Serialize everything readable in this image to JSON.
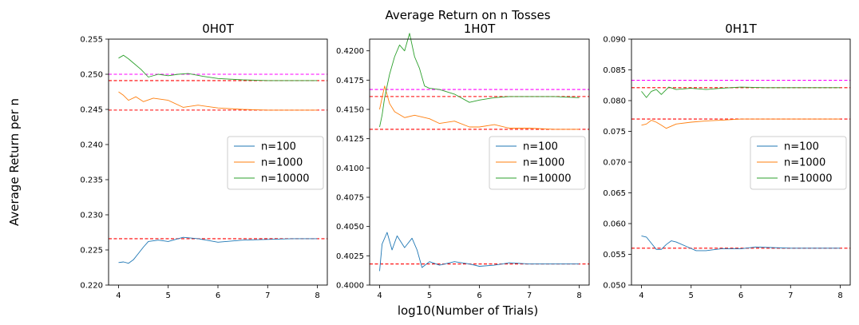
{
  "figure": {
    "suptitle": "Average Return on n Tosses",
    "ylabel": "Average Return per n",
    "xlabel": "log10(Number of Trials)"
  },
  "chart_data": [
    {
      "type": "line",
      "title": "0H0T",
      "xlim": [
        3.8,
        8.2
      ],
      "ylim": [
        0.22,
        0.255
      ],
      "xticks": [
        "4",
        "5",
        "6",
        "7",
        "8"
      ],
      "yticks": [
        "0.220",
        "0.225",
        "0.230",
        "0.235",
        "0.240",
        "0.245",
        "0.250",
        "0.255"
      ],
      "legend": "center-right",
      "series": [
        {
          "name": "n=100",
          "color": "#1f77b4",
          "x": [
            4.0,
            4.1,
            4.2,
            4.3,
            4.4,
            4.5,
            4.6,
            4.8,
            5.0,
            5.3,
            5.6,
            6.0,
            6.5,
            7.0,
            7.5,
            8.0
          ],
          "y": [
            0.2232,
            0.2233,
            0.2231,
            0.2236,
            0.2245,
            0.2254,
            0.2262,
            0.2264,
            0.2262,
            0.2268,
            0.2266,
            0.2261,
            0.2264,
            0.2265,
            0.2266,
            0.2266
          ]
        },
        {
          "name": "n=1000",
          "color": "#ff7f0e",
          "x": [
            4.0,
            4.1,
            4.2,
            4.35,
            4.5,
            4.7,
            5.0,
            5.3,
            5.6,
            6.0,
            6.5,
            7.0,
            7.5,
            8.0
          ],
          "y": [
            0.2475,
            0.247,
            0.2463,
            0.2468,
            0.2461,
            0.2466,
            0.2463,
            0.2453,
            0.2456,
            0.2452,
            0.245,
            0.2449,
            0.2449,
            0.2449
          ]
        },
        {
          "name": "n=10000",
          "color": "#2ca02c",
          "x": [
            4.0,
            4.1,
            4.2,
            4.3,
            4.45,
            4.6,
            4.8,
            5.0,
            5.2,
            5.4,
            5.7,
            6.0,
            6.5,
            7.0,
            7.5,
            8.0
          ],
          "y": [
            0.2523,
            0.2527,
            0.2522,
            0.2516,
            0.2507,
            0.2496,
            0.25,
            0.2498,
            0.25,
            0.2501,
            0.2497,
            0.2494,
            0.2492,
            0.2491,
            0.2491,
            0.2491
          ]
        }
      ],
      "reference_lines": [
        {
          "y": 0.25,
          "color": "#ff00ff"
        },
        {
          "y": 0.2491,
          "color": "#ff0000"
        },
        {
          "y": 0.2449,
          "color": "#ff0000"
        },
        {
          "y": 0.2266,
          "color": "#ff0000"
        }
      ]
    },
    {
      "type": "line",
      "title": "1H0T",
      "xlim": [
        3.8,
        8.2
      ],
      "ylim": [
        0.4,
        0.421
      ],
      "xticks": [
        "4",
        "5",
        "6",
        "7",
        "8"
      ],
      "yticks": [
        "0.4000",
        "0.4025",
        "0.4050",
        "0.4075",
        "0.4100",
        "0.4125",
        "0.4150",
        "0.4175",
        "0.4200"
      ],
      "legend": "center-right",
      "series": [
        {
          "name": "n=100",
          "color": "#1f77b4",
          "x": [
            4.0,
            4.05,
            4.15,
            4.25,
            4.35,
            4.5,
            4.65,
            4.75,
            4.85,
            5.0,
            5.2,
            5.5,
            5.8,
            6.0,
            6.3,
            6.6,
            7.0,
            7.5,
            8.0
          ],
          "y": [
            0.4012,
            0.4035,
            0.4045,
            0.403,
            0.4042,
            0.4032,
            0.404,
            0.403,
            0.4015,
            0.402,
            0.4017,
            0.402,
            0.4018,
            0.4016,
            0.4017,
            0.4019,
            0.4018,
            0.4018,
            0.4018
          ]
        },
        {
          "name": "n=1000",
          "color": "#ff7f0e",
          "x": [
            4.0,
            4.05,
            4.1,
            4.2,
            4.3,
            4.5,
            4.7,
            5.0,
            5.2,
            5.5,
            5.8,
            6.0,
            6.3,
            6.6,
            7.0,
            7.5,
            8.0
          ],
          "y": [
            0.415,
            0.416,
            0.417,
            0.4155,
            0.4148,
            0.4143,
            0.4145,
            0.4142,
            0.4138,
            0.414,
            0.4135,
            0.4135,
            0.4137,
            0.4134,
            0.4134,
            0.4133,
            0.4133
          ]
        },
        {
          "name": "n=10000",
          "color": "#2ca02c",
          "x": [
            4.0,
            4.05,
            4.1,
            4.2,
            4.3,
            4.4,
            4.5,
            4.6,
            4.7,
            4.8,
            4.9,
            5.0,
            5.2,
            5.5,
            5.8,
            6.0,
            6.3,
            6.6,
            7.0,
            7.5,
            8.0
          ],
          "y": [
            0.4135,
            0.4145,
            0.416,
            0.418,
            0.4195,
            0.4205,
            0.42,
            0.4215,
            0.4195,
            0.4185,
            0.417,
            0.4168,
            0.4167,
            0.4163,
            0.4156,
            0.4158,
            0.416,
            0.4161,
            0.4161,
            0.4161,
            0.416
          ]
        }
      ],
      "reference_lines": [
        {
          "y": 0.4167,
          "color": "#ff00ff"
        },
        {
          "y": 0.4161,
          "color": "#ff0000"
        },
        {
          "y": 0.4133,
          "color": "#ff0000"
        },
        {
          "y": 0.4018,
          "color": "#ff0000"
        }
      ]
    },
    {
      "type": "line",
      "title": "0H1T",
      "xlim": [
        3.8,
        8.2
      ],
      "ylim": [
        0.05,
        0.09
      ],
      "xticks": [
        "4",
        "5",
        "6",
        "7",
        "8"
      ],
      "yticks": [
        "0.050",
        "0.055",
        "0.060",
        "0.065",
        "0.070",
        "0.075",
        "0.080",
        "0.085",
        "0.090"
      ],
      "legend": "center-right",
      "series": [
        {
          "name": "n=100",
          "color": "#1f77b4",
          "x": [
            4.0,
            4.1,
            4.2,
            4.3,
            4.4,
            4.5,
            4.6,
            4.7,
            4.9,
            5.1,
            5.3,
            5.6,
            6.0,
            6.3,
            6.6,
            7.0,
            7.5,
            8.0
          ],
          "y": [
            0.058,
            0.0578,
            0.0568,
            0.0558,
            0.0558,
            0.0566,
            0.0572,
            0.057,
            0.0563,
            0.0556,
            0.0556,
            0.0559,
            0.0559,
            0.0562,
            0.0561,
            0.056,
            0.056,
            0.056
          ]
        },
        {
          "name": "n=1000",
          "color": "#ff7f0e",
          "x": [
            4.0,
            4.1,
            4.2,
            4.3,
            4.4,
            4.5,
            4.7,
            5.0,
            5.3,
            5.6,
            6.0,
            6.5,
            7.0,
            7.5,
            8.0
          ],
          "y": [
            0.076,
            0.0762,
            0.0768,
            0.0765,
            0.076,
            0.0755,
            0.0762,
            0.0765,
            0.0767,
            0.0768,
            0.077,
            0.077,
            0.077,
            0.077,
            0.077
          ]
        },
        {
          "name": "n=10000",
          "color": "#2ca02c",
          "x": [
            4.0,
            4.1,
            4.2,
            4.3,
            4.4,
            4.55,
            4.7,
            5.0,
            5.3,
            5.6,
            6.0,
            6.5,
            7.0,
            7.5,
            8.0
          ],
          "y": [
            0.0815,
            0.0805,
            0.0815,
            0.0818,
            0.081,
            0.0822,
            0.0818,
            0.082,
            0.0818,
            0.082,
            0.0822,
            0.0821,
            0.0821,
            0.0821,
            0.0821
          ]
        }
      ],
      "reference_lines": [
        {
          "y": 0.0833,
          "color": "#ff00ff"
        },
        {
          "y": 0.0821,
          "color": "#ff0000"
        },
        {
          "y": 0.077,
          "color": "#ff0000"
        },
        {
          "y": 0.056,
          "color": "#ff0000"
        }
      ]
    }
  ]
}
